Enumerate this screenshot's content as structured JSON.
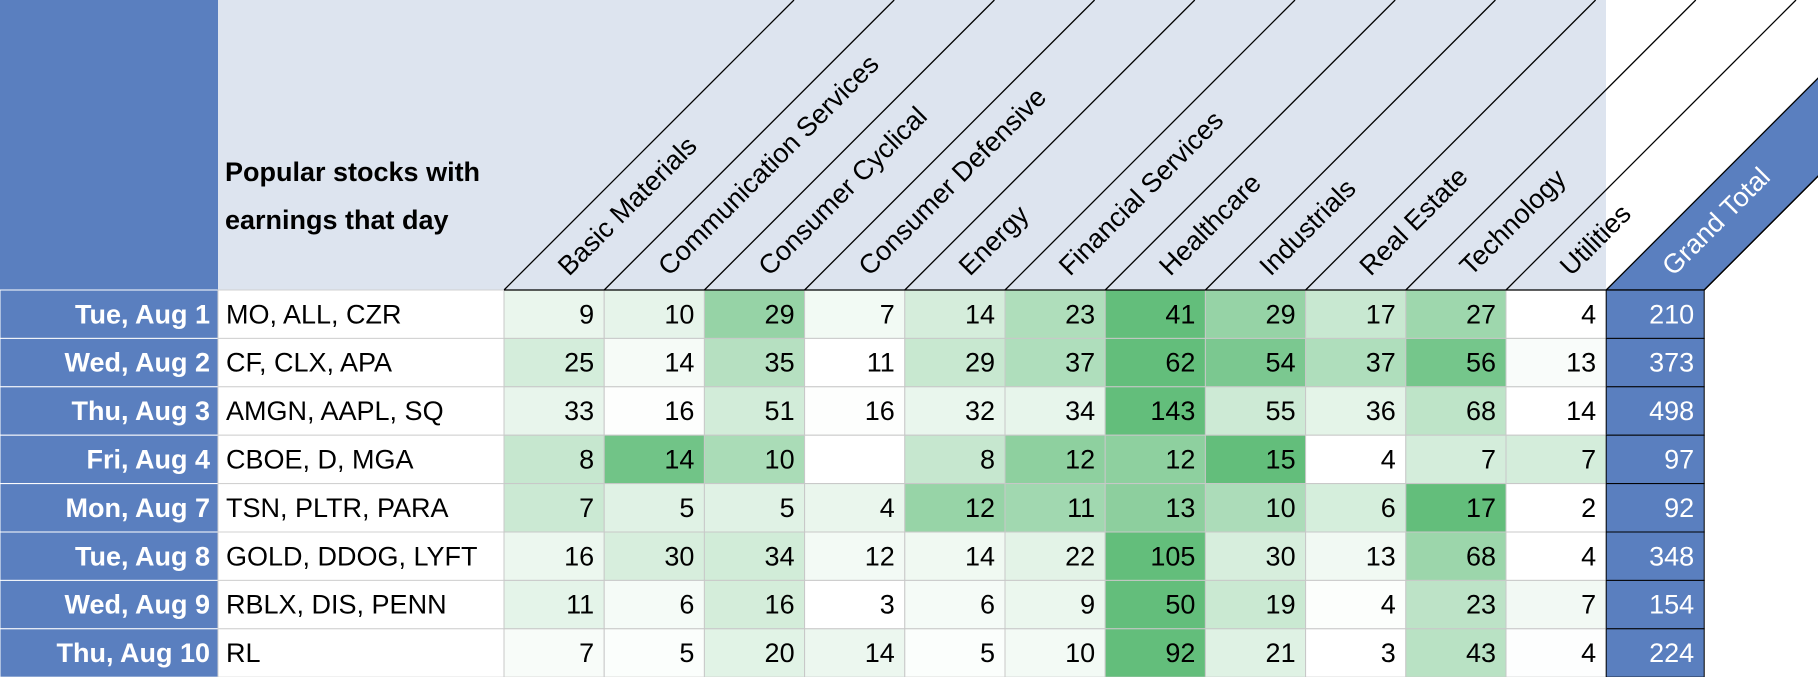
{
  "header": {
    "stocks_label": "Popular stocks with earnings that day",
    "columns": [
      "Basic Materials",
      "Communication Services",
      "Consumer Cyclical",
      "Consumer Defensive",
      "Energy",
      "Financial Services",
      "Healthcare",
      "Industrials",
      "Real Estate",
      "Technology",
      "Utilities"
    ],
    "total_label": "Grand Total"
  },
  "heat_color": "#63be7b",
  "rows": [
    {
      "date": "Tue, Aug 1",
      "stocks": "MO, ALL, CZR",
      "values": [
        9,
        10,
        29,
        7,
        14,
        23,
        41,
        29,
        17,
        27,
        4
      ],
      "total": 210
    },
    {
      "date": "Wed, Aug 2",
      "stocks": "CF, CLX, APA",
      "values": [
        25,
        14,
        35,
        11,
        29,
        37,
        62,
        54,
        37,
        56,
        13
      ],
      "total": 373
    },
    {
      "date": "Thu, Aug 3",
      "stocks": "AMGN, AAPL, SQ",
      "values": [
        33,
        16,
        51,
        16,
        32,
        34,
        143,
        55,
        36,
        68,
        14
      ],
      "total": 498
    },
    {
      "date": "Fri, Aug 4",
      "stocks": "CBOE, D, MGA",
      "values": [
        8,
        14,
        10,
        null,
        8,
        12,
        12,
        15,
        4,
        7,
        7
      ],
      "total": 97
    },
    {
      "date": "Mon, Aug 7",
      "stocks": "TSN, PLTR, PARA",
      "values": [
        7,
        5,
        5,
        4,
        12,
        11,
        13,
        10,
        6,
        17,
        2
      ],
      "total": 92
    },
    {
      "date": "Tue, Aug 8",
      "stocks": "GOLD, DDOG, LYFT",
      "values": [
        16,
        30,
        34,
        12,
        14,
        22,
        105,
        30,
        13,
        68,
        4
      ],
      "total": 348
    },
    {
      "date": "Wed, Aug 9",
      "stocks": "RBLX, DIS, PENN",
      "values": [
        11,
        6,
        16,
        3,
        6,
        9,
        50,
        19,
        4,
        23,
        7
      ],
      "total": 154
    },
    {
      "date": "Thu, Aug 10",
      "stocks": "RL",
      "values": [
        7,
        5,
        20,
        14,
        5,
        10,
        92,
        21,
        3,
        43,
        4
      ],
      "total": 224
    }
  ]
}
